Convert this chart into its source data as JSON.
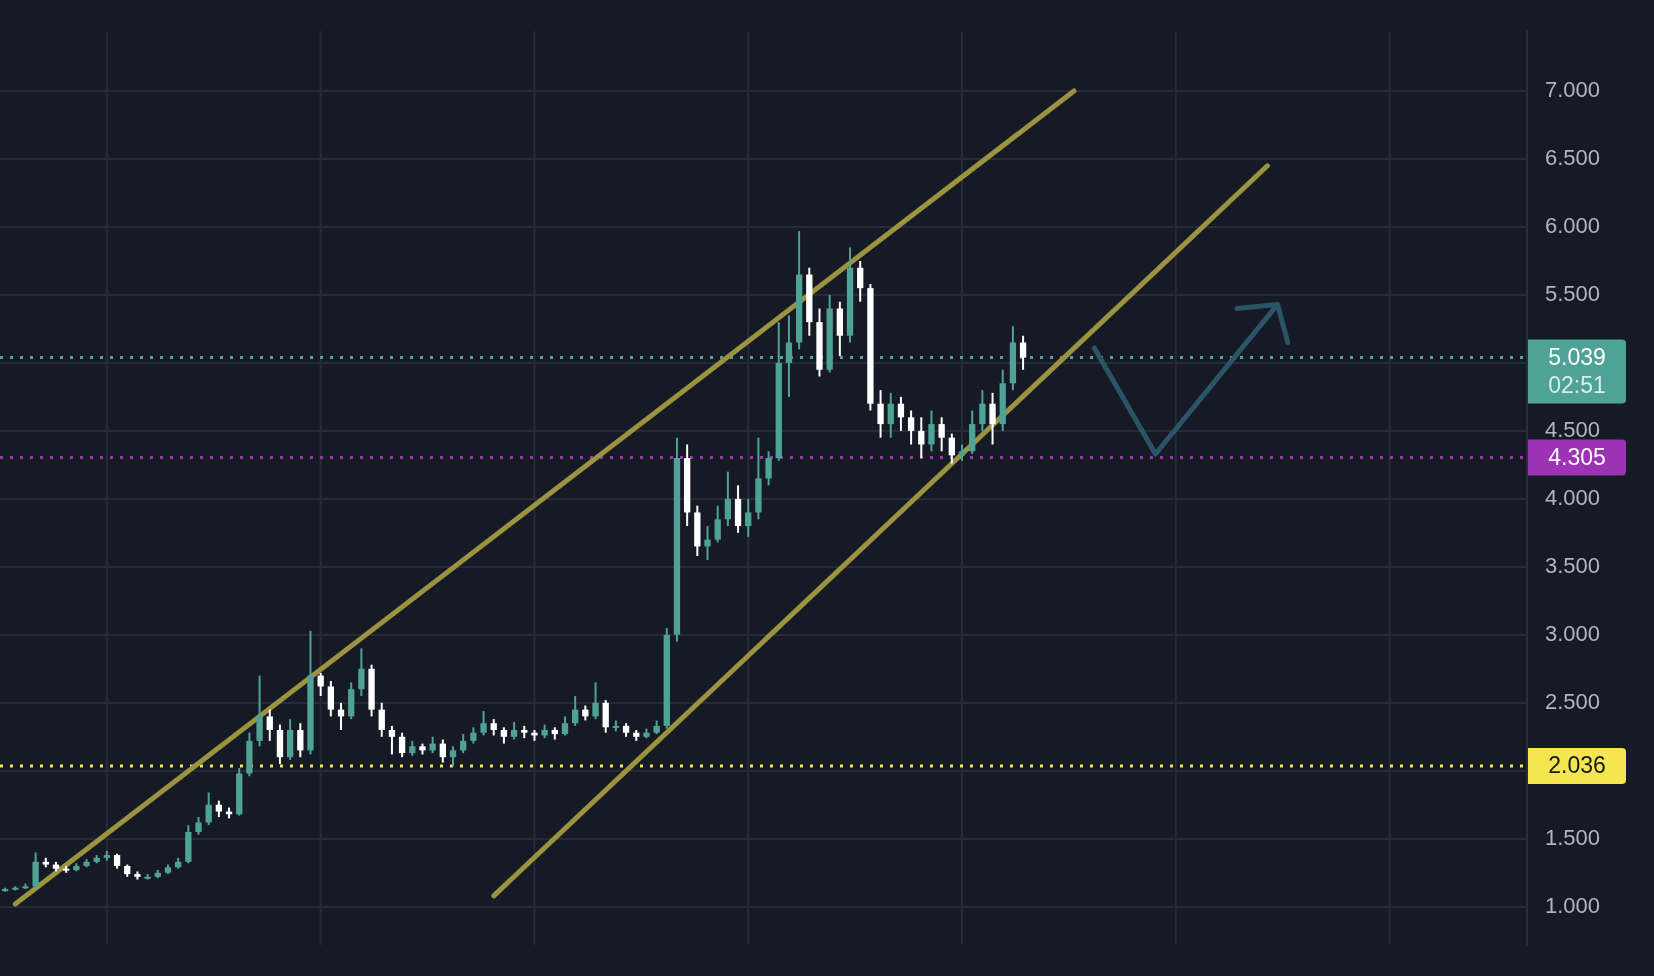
{
  "chart_data": {
    "type": "candlestick",
    "tick_labels": "y",
    "grid": true,
    "legend": false,
    "categories": [
      null,
      null,
      null,
      null,
      null,
      null,
      null,
      null,
      null,
      null,
      null,
      null,
      null,
      null,
      null,
      null,
      null,
      null,
      null,
      null,
      null,
      null,
      null,
      null,
      null,
      null,
      null,
      null,
      null,
      null,
      null,
      null,
      null,
      null,
      null,
      null,
      null,
      null,
      null,
      null,
      null,
      null,
      null,
      null,
      null,
      null,
      null,
      null,
      null,
      null,
      null,
      null,
      null,
      null,
      null,
      null,
      null,
      null,
      null,
      null,
      null,
      null,
      null,
      null,
      null,
      null,
      null,
      null,
      null,
      null,
      null,
      null,
      null,
      null,
      null,
      null,
      null,
      null,
      null,
      null,
      null,
      null,
      null,
      null,
      null,
      null,
      null,
      null,
      null,
      null,
      null,
      null,
      null,
      null,
      null,
      null,
      null,
      null,
      null,
      null,
      null,
      null,
      null,
      null,
      null,
      null,
      null,
      null,
      null,
      null,
      null,
      null,
      null,
      null,
      null,
      null,
      null,
      null,
      null,
      null,
      null,
      null,
      null,
      null,
      null,
      null,
      null,
      null,
      null,
      null,
      null,
      null,
      null,
      null,
      null,
      null,
      null,
      null,
      null,
      null,
      null,
      null,
      null,
      null,
      null,
      null,
      null,
      null,
      null,
      null
    ],
    "ohlc": [
      [
        1.12,
        1.14,
        1.11,
        1.13
      ],
      [
        1.13,
        1.15,
        1.12,
        1.14
      ],
      [
        1.14,
        1.17,
        1.13,
        1.15
      ],
      [
        1.15,
        1.4,
        1.14,
        1.33
      ],
      [
        1.33,
        1.36,
        1.29,
        1.31
      ],
      [
        1.31,
        1.33,
        1.26,
        1.28
      ],
      [
        1.28,
        1.3,
        1.25,
        1.27
      ],
      [
        1.27,
        1.32,
        1.26,
        1.3
      ],
      [
        1.3,
        1.35,
        1.29,
        1.33
      ],
      [
        1.33,
        1.38,
        1.32,
        1.36
      ],
      [
        1.36,
        1.41,
        1.34,
        1.38
      ],
      [
        1.38,
        1.39,
        1.28,
        1.3
      ],
      [
        1.3,
        1.31,
        1.22,
        1.24
      ],
      [
        1.24,
        1.26,
        1.2,
        1.22
      ],
      [
        1.22,
        1.24,
        1.2,
        1.22
      ],
      [
        1.22,
        1.27,
        1.21,
        1.25
      ],
      [
        1.25,
        1.31,
        1.24,
        1.29
      ],
      [
        1.29,
        1.36,
        1.28,
        1.33
      ],
      [
        1.33,
        1.6,
        1.32,
        1.55
      ],
      [
        1.55,
        1.66,
        1.53,
        1.62
      ],
      [
        1.62,
        1.84,
        1.6,
        1.75
      ],
      [
        1.75,
        1.78,
        1.66,
        1.7
      ],
      [
        1.7,
        1.73,
        1.65,
        1.68
      ],
      [
        1.68,
        2.02,
        1.67,
        1.98
      ],
      [
        1.98,
        2.28,
        1.96,
        2.22
      ],
      [
        2.22,
        2.7,
        2.18,
        2.4
      ],
      [
        2.4,
        2.45,
        2.22,
        2.3
      ],
      [
        2.3,
        2.34,
        2.05,
        2.1
      ],
      [
        2.1,
        2.38,
        2.08,
        2.3
      ],
      [
        2.3,
        2.35,
        2.1,
        2.15
      ],
      [
        2.15,
        3.03,
        2.12,
        2.7
      ],
      [
        2.7,
        2.72,
        2.55,
        2.62
      ],
      [
        2.62,
        2.66,
        2.4,
        2.45
      ],
      [
        2.45,
        2.5,
        2.3,
        2.4
      ],
      [
        2.4,
        2.65,
        2.38,
        2.6
      ],
      [
        2.6,
        2.9,
        2.55,
        2.75
      ],
      [
        2.75,
        2.78,
        2.4,
        2.45
      ],
      [
        2.45,
        2.5,
        2.25,
        2.3
      ],
      [
        2.3,
        2.33,
        2.12,
        2.25
      ],
      [
        2.25,
        2.28,
        2.1,
        2.13
      ],
      [
        2.13,
        2.22,
        2.11,
        2.18
      ],
      [
        2.18,
        2.2,
        2.12,
        2.15
      ],
      [
        2.15,
        2.25,
        2.13,
        2.2
      ],
      [
        2.2,
        2.23,
        2.06,
        2.1
      ],
      [
        2.1,
        2.18,
        2.03,
        2.15
      ],
      [
        2.15,
        2.27,
        2.13,
        2.22
      ],
      [
        2.22,
        2.32,
        2.2,
        2.28
      ],
      [
        2.28,
        2.44,
        2.26,
        2.35
      ],
      [
        2.35,
        2.38,
        2.26,
        2.3
      ],
      [
        2.3,
        2.32,
        2.2,
        2.25
      ],
      [
        2.25,
        2.36,
        2.23,
        2.3
      ],
      [
        2.3,
        2.33,
        2.24,
        2.28
      ],
      [
        2.28,
        2.3,
        2.22,
        2.26
      ],
      [
        2.26,
        2.34,
        2.24,
        2.3
      ],
      [
        2.3,
        2.32,
        2.23,
        2.27
      ],
      [
        2.27,
        2.4,
        2.26,
        2.35
      ],
      [
        2.35,
        2.55,
        2.33,
        2.45
      ],
      [
        2.45,
        2.48,
        2.37,
        2.4
      ],
      [
        2.4,
        2.65,
        2.38,
        2.5
      ],
      [
        2.5,
        2.52,
        2.28,
        2.32
      ],
      [
        2.32,
        2.37,
        2.29,
        2.33
      ],
      [
        2.33,
        2.35,
        2.25,
        2.28
      ],
      [
        2.28,
        2.3,
        2.22,
        2.25
      ],
      [
        2.25,
        2.31,
        2.24,
        2.28
      ],
      [
        2.28,
        2.37,
        2.27,
        2.33
      ],
      [
        2.33,
        3.05,
        2.31,
        3.0
      ],
      [
        3.0,
        4.45,
        2.95,
        4.3
      ],
      [
        4.3,
        4.4,
        3.8,
        3.9
      ],
      [
        3.9,
        3.95,
        3.58,
        3.65
      ],
      [
        3.65,
        3.8,
        3.55,
        3.7
      ],
      [
        3.7,
        3.95,
        3.68,
        3.85
      ],
      [
        3.85,
        4.2,
        3.8,
        4.0
      ],
      [
        4.0,
        4.1,
        3.75,
        3.8
      ],
      [
        3.8,
        4.0,
        3.72,
        3.9
      ],
      [
        3.9,
        4.45,
        3.85,
        4.15
      ],
      [
        4.15,
        4.35,
        4.1,
        4.3
      ],
      [
        4.3,
        5.3,
        4.28,
        5.0
      ],
      [
        5.0,
        5.35,
        4.75,
        5.15
      ],
      [
        5.15,
        5.97,
        5.1,
        5.65
      ],
      [
        5.65,
        5.7,
        5.2,
        5.3
      ],
      [
        5.3,
        5.4,
        4.9,
        4.95
      ],
      [
        4.95,
        5.5,
        4.93,
        5.4
      ],
      [
        5.4,
        5.45,
        5.05,
        5.2
      ],
      [
        5.2,
        5.85,
        5.15,
        5.7
      ],
      [
        5.7,
        5.75,
        5.45,
        5.55
      ],
      [
        5.55,
        5.58,
        4.65,
        4.7
      ],
      [
        4.7,
        4.8,
        4.45,
        4.55
      ],
      [
        4.55,
        4.78,
        4.45,
        4.7
      ],
      [
        4.7,
        4.75,
        4.5,
        4.6
      ],
      [
        4.6,
        4.65,
        4.4,
        4.5
      ],
      [
        4.5,
        4.6,
        4.3,
        4.4
      ],
      [
        4.4,
        4.65,
        4.35,
        4.55
      ],
      [
        4.55,
        4.6,
        4.35,
        4.45
      ],
      [
        4.45,
        4.48,
        4.26,
        4.32
      ],
      [
        4.32,
        4.4,
        4.28,
        4.35
      ],
      [
        4.35,
        4.65,
        4.33,
        4.55
      ],
      [
        4.55,
        4.8,
        4.5,
        4.7
      ],
      [
        4.7,
        4.78,
        4.4,
        4.55
      ],
      [
        4.55,
        4.95,
        4.5,
        4.85
      ],
      [
        4.85,
        5.27,
        4.8,
        5.15
      ],
      [
        5.15,
        5.2,
        4.95,
        5.039
      ],
      null,
      null,
      null,
      null,
      null,
      null,
      null,
      null,
      null,
      null,
      null,
      null,
      null,
      null,
      null,
      null,
      null,
      null,
      null,
      null,
      null,
      null,
      null,
      null,
      null,
      null,
      null,
      null,
      null,
      null,
      null,
      null,
      null,
      null,
      null,
      null,
      null,
      null,
      null,
      null,
      null,
      null,
      null,
      null,
      null,
      null,
      null,
      null,
      null
    ],
    "colors": [
      "#4fa396",
      "#4fa396",
      "#4fa396",
      "#4fa396",
      "#ffffff",
      "#ffffff",
      "#ffffff",
      "#4fa396",
      "#4fa396",
      "#4fa396",
      "#4fa396",
      "#ffffff",
      "#ffffff",
      "#ffffff",
      "#4fa396",
      "#4fa396",
      "#4fa396",
      "#4fa396",
      "#4fa396",
      "#4fa396",
      "#4fa396",
      "#ffffff",
      "#ffffff",
      "#4fa396",
      "#4fa396",
      "#4fa396",
      "#ffffff",
      "#ffffff",
      "#4fa396",
      "#ffffff",
      "#4fa396",
      "#ffffff",
      "#ffffff",
      "#ffffff",
      "#4fa396",
      "#4fa396",
      "#ffffff",
      "#ffffff",
      "#ffffff",
      "#ffffff",
      "#4fa396",
      "#ffffff",
      "#4fa396",
      "#ffffff",
      "#4fa396",
      "#4fa396",
      "#4fa396",
      "#4fa396",
      "#ffffff",
      "#ffffff",
      "#4fa396",
      "#ffffff",
      "#ffffff",
      "#4fa396",
      "#ffffff",
      "#4fa396",
      "#4fa396",
      "#ffffff",
      "#4fa396",
      "#ffffff",
      "#4fa396",
      "#ffffff",
      "#ffffff",
      "#4fa396",
      "#4fa396",
      "#4fa396",
      "#4fa396",
      "#ffffff",
      "#ffffff",
      "#4fa396",
      "#4fa396",
      "#4fa396",
      "#ffffff",
      "#4fa396",
      "#4fa396",
      "#4fa396",
      "#4fa396",
      "#4fa396",
      "#4fa396",
      "#ffffff",
      "#ffffff",
      "#4fa396",
      "#ffffff",
      "#4fa396",
      "#ffffff",
      "#ffffff",
      "#ffffff",
      "#4fa396",
      "#ffffff",
      "#ffffff",
      "#ffffff",
      "#4fa396",
      "#ffffff",
      "#ffffff",
      "#4fa396",
      "#4fa396",
      "#4fa396",
      "#ffffff",
      "#4fa396",
      "#4fa396",
      "#ffffff",
      null,
      null,
      null,
      null,
      null,
      null,
      null,
      null,
      null,
      null,
      null,
      null,
      null,
      null,
      null,
      null,
      null,
      null,
      null,
      null,
      null,
      null,
      null,
      null,
      null,
      null,
      null,
      null,
      null,
      null,
      null,
      null,
      null,
      null,
      null,
      null,
      null,
      null,
      null,
      null,
      null,
      null,
      null,
      null,
      null,
      null,
      null,
      null,
      null
    ],
    "series": [
      {
        "type": "line",
        "color": "#9b9340",
        "values": [
          null,
          1.02,
          null,
          null,
          null,
          null,
          null,
          null,
          null,
          null,
          null,
          null,
          null,
          null,
          null,
          null,
          null,
          null,
          null,
          null,
          null,
          null,
          null,
          null,
          null,
          null,
          null,
          null,
          null,
          null,
          null,
          null,
          null,
          null,
          null,
          null,
          null,
          null,
          null,
          null,
          null,
          null,
          null,
          null,
          null,
          null,
          null,
          null,
          null,
          null,
          null,
          null,
          null,
          null,
          null,
          null,
          null,
          null,
          null,
          null,
          null,
          null,
          null,
          null,
          null,
          null,
          null,
          null,
          null,
          null,
          null,
          null,
          null,
          null,
          null,
          null,
          null,
          null,
          null,
          null,
          null,
          null,
          null,
          null,
          null,
          null,
          null,
          null,
          null,
          null,
          null,
          null,
          null,
          null,
          null,
          null,
          null,
          null,
          null,
          null,
          null,
          null,
          null,
          null,
          null,
          7.0,
          null,
          null,
          null,
          null,
          null,
          null,
          null,
          null,
          null,
          null,
          null,
          null,
          null,
          null,
          null,
          null,
          null,
          null,
          null,
          null,
          null,
          null,
          null,
          null,
          null,
          null,
          null,
          null,
          null,
          null,
          null,
          null,
          null,
          null,
          null,
          null,
          null,
          null,
          null,
          null,
          null,
          null,
          null,
          null
        ]
      },
      {
        "type": "line",
        "color": "#9b9340",
        "values": [
          null,
          null,
          null,
          null,
          null,
          null,
          null,
          null,
          null,
          null,
          null,
          null,
          null,
          null,
          null,
          null,
          null,
          null,
          null,
          null,
          null,
          null,
          null,
          null,
          null,
          null,
          null,
          null,
          null,
          null,
          null,
          null,
          null,
          null,
          null,
          null,
          null,
          null,
          null,
          null,
          null,
          null,
          null,
          null,
          null,
          null,
          null,
          null,
          1.08,
          null,
          null,
          null,
          null,
          null,
          null,
          null,
          null,
          null,
          null,
          null,
          null,
          null,
          null,
          null,
          null,
          null,
          null,
          null,
          null,
          null,
          null,
          null,
          null,
          null,
          null,
          null,
          null,
          null,
          null,
          null,
          null,
          null,
          null,
          null,
          null,
          null,
          null,
          null,
          null,
          null,
          null,
          null,
          null,
          null,
          null,
          null,
          null,
          null,
          null,
          null,
          null,
          null,
          null,
          null,
          null,
          null,
          null,
          null,
          null,
          null,
          null,
          null,
          null,
          null,
          null,
          null,
          null,
          null,
          null,
          null,
          null,
          null,
          null,
          null,
          6.45,
          null,
          null,
          null,
          null,
          null,
          null,
          null,
          null,
          null,
          null,
          null,
          null,
          null,
          null,
          null,
          null,
          null,
          null,
          null,
          null,
          null,
          null,
          null,
          null,
          null
        ]
      },
      {
        "type": "line",
        "color": "#2b5566",
        "values": [
          null,
          null,
          null,
          null,
          null,
          null,
          null,
          null,
          null,
          null,
          null,
          null,
          null,
          null,
          null,
          null,
          null,
          null,
          null,
          null,
          null,
          null,
          null,
          null,
          null,
          null,
          null,
          null,
          null,
          null,
          null,
          null,
          null,
          null,
          null,
          null,
          null,
          null,
          null,
          null,
          null,
          null,
          null,
          null,
          null,
          null,
          null,
          null,
          null,
          null,
          null,
          null,
          null,
          null,
          null,
          null,
          null,
          null,
          null,
          null,
          null,
          null,
          null,
          null,
          null,
          null,
          null,
          null,
          null,
          null,
          null,
          null,
          null,
          null,
          null,
          null,
          null,
          null,
          null,
          null,
          null,
          null,
          null,
          null,
          null,
          null,
          null,
          null,
          null,
          null,
          null,
          null,
          null,
          null,
          null,
          null,
          null,
          null,
          null,
          null,
          null,
          null,
          null,
          null,
          null,
          null,
          null,
          5.11,
          null,
          null,
          null,
          null,
          null,
          4.33,
          null,
          null,
          null,
          null,
          null,
          null,
          null,
          null,
          null,
          null,
          null,
          5.43,
          null,
          null,
          null,
          null,
          null,
          null,
          null,
          null,
          null,
          null,
          null,
          null,
          null,
          null,
          null,
          null,
          null,
          null,
          null,
          null,
          null,
          null,
          null,
          null
        ]
      },
      {
        "type": "line",
        "color": "#2b5566",
        "values": [
          null,
          null,
          null,
          null,
          null,
          null,
          null,
          null,
          null,
          null,
          null,
          null,
          null,
          null,
          null,
          null,
          null,
          null,
          null,
          null,
          null,
          null,
          null,
          null,
          null,
          null,
          null,
          null,
          null,
          null,
          null,
          null,
          null,
          null,
          null,
          null,
          null,
          null,
          null,
          null,
          null,
          null,
          null,
          null,
          null,
          null,
          null,
          null,
          null,
          null,
          null,
          null,
          null,
          null,
          null,
          null,
          null,
          null,
          null,
          null,
          null,
          null,
          null,
          null,
          null,
          null,
          null,
          null,
          null,
          null,
          null,
          null,
          null,
          null,
          null,
          null,
          null,
          null,
          null,
          null,
          null,
          null,
          null,
          null,
          null,
          null,
          null,
          null,
          null,
          null,
          null,
          null,
          null,
          null,
          null,
          null,
          null,
          null,
          null,
          null,
          null,
          null,
          null,
          null,
          null,
          null,
          null,
          null,
          null,
          null,
          null,
          null,
          null,
          null,
          null,
          null,
          null,
          null,
          null,
          null,
          null,
          5.4,
          null,
          null,
          null,
          5.43,
          5.15,
          null,
          null,
          null,
          null,
          null,
          null,
          null,
          null,
          null,
          null,
          null,
          null,
          null,
          null,
          null,
          null,
          null,
          null,
          null,
          null,
          null,
          null,
          null
        ]
      }
    ],
    "ylim": [
      0.72,
      7.44
    ],
    "yticks": [
      {
        "value": 1,
        "label": "1.000"
      },
      {
        "value": 1.5,
        "label": "1.500"
      },
      {
        "value": 2,
        "label": null
      },
      {
        "value": 2.5,
        "label": "2.500"
      },
      {
        "value": 3,
        "label": "3.000"
      },
      {
        "value": 3.5,
        "label": "3.500"
      },
      {
        "value": 4,
        "label": "4.000"
      },
      {
        "value": 4.5,
        "label": "4.500"
      },
      {
        "value": 5,
        "label": null
      },
      {
        "value": 5.5,
        "label": "5.500"
      },
      {
        "value": 6,
        "label": "6.000"
      },
      {
        "value": 6.5,
        "label": "6.500"
      },
      {
        "value": 7,
        "label": "7.000"
      }
    ],
    "ref_lines": [
      {
        "axis": "y",
        "value": 5.039,
        "label": "5.039",
        "color": "#4fa396",
        "line_style": "dotted"
      },
      {
        "axis": "y",
        "value": 4.305,
        "label": "4.305",
        "color": "#9c33b5",
        "line_style": "dotted"
      },
      {
        "axis": "y",
        "value": 2.036,
        "label": "2.036",
        "color": "#f5e54f",
        "line_style": "dotted"
      }
    ],
    "annotations": [
      "02:51"
    ]
  }
}
